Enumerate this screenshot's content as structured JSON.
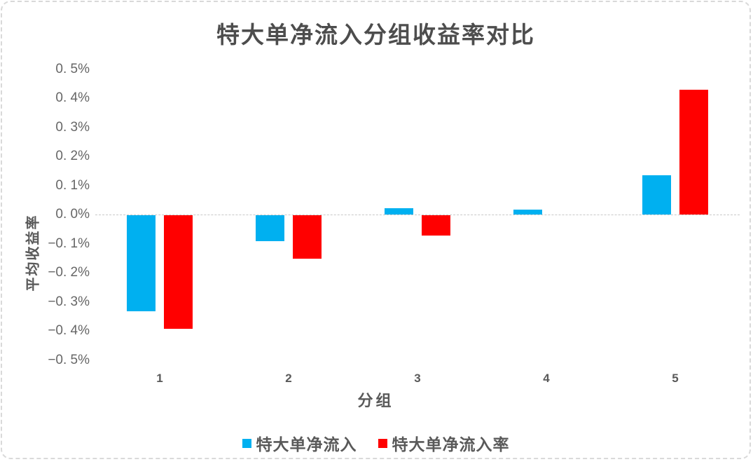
{
  "page": {
    "background": "#ffffff",
    "border_color": "#d9d9d9"
  },
  "chart_data": {
    "type": "bar",
    "title": "特大单净流入分组收益率对比",
    "xlabel": "分组",
    "ylabel": "平均收益率",
    "unit": "%",
    "categories": [
      "1",
      "2",
      "3",
      "4",
      "5"
    ],
    "series": [
      {
        "name": "特大单净流入",
        "color": "#00B0F0",
        "values": [
          -0.33,
          -0.09,
          0.022,
          0.018,
          0.135
        ]
      },
      {
        "name": "特大单净流入率",
        "color": "#FF0000",
        "values": [
          -0.39,
          -0.15,
          -0.07,
          0.0,
          0.43
        ]
      }
    ],
    "ylim": [
      -0.5,
      0.5
    ],
    "ytick_step": 0.1,
    "ytick_labels": [
      "0. 5%",
      "0. 4%",
      "0. 3%",
      "0. 2%",
      "0. 1%",
      "0. 0%",
      "−0. 1%",
      "−0. 2%",
      "−0. 3%",
      "−0. 4%",
      "−0. 5%"
    ],
    "grid": false,
    "legend_position": "bottom",
    "axis_line_color": "#c9c9c9",
    "text_color": "#595959"
  }
}
